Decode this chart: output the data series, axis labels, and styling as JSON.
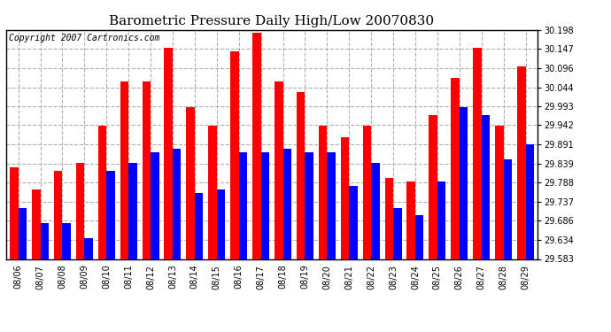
{
  "title": "Barometric Pressure Daily High/Low 20070830",
  "copyright": "Copyright 2007 Cartronics.com",
  "categories": [
    "08/06",
    "08/07",
    "08/08",
    "08/09",
    "08/10",
    "08/11",
    "08/12",
    "08/13",
    "08/14",
    "08/15",
    "08/16",
    "08/17",
    "08/18",
    "08/19",
    "08/20",
    "08/21",
    "08/22",
    "08/23",
    "08/24",
    "08/25",
    "08/26",
    "08/27",
    "08/28",
    "08/29"
  ],
  "highs": [
    29.83,
    29.77,
    29.82,
    29.84,
    29.94,
    30.06,
    30.06,
    30.15,
    29.99,
    29.94,
    30.14,
    30.19,
    30.06,
    30.03,
    29.94,
    29.91,
    29.94,
    29.8,
    29.79,
    29.97,
    30.07,
    30.15,
    29.94,
    30.1
  ],
  "lows": [
    29.72,
    29.68,
    29.68,
    29.64,
    29.82,
    29.84,
    29.87,
    29.88,
    29.76,
    29.77,
    29.87,
    29.87,
    29.88,
    29.87,
    29.87,
    29.78,
    29.84,
    29.72,
    29.7,
    29.79,
    29.99,
    29.97,
    29.85,
    29.89
  ],
  "high_color": "#ff0000",
  "low_color": "#0000ff",
  "bg_color": "#ffffff",
  "grid_color": "#b0b0b0",
  "ylim_min": 29.583,
  "ylim_max": 30.198,
  "yticks": [
    29.583,
    29.634,
    29.686,
    29.737,
    29.788,
    29.839,
    29.891,
    29.942,
    29.993,
    30.044,
    30.096,
    30.147,
    30.198
  ],
  "title_fontsize": 11,
  "copyright_fontsize": 7,
  "tick_fontsize": 7,
  "bar_width": 0.38
}
